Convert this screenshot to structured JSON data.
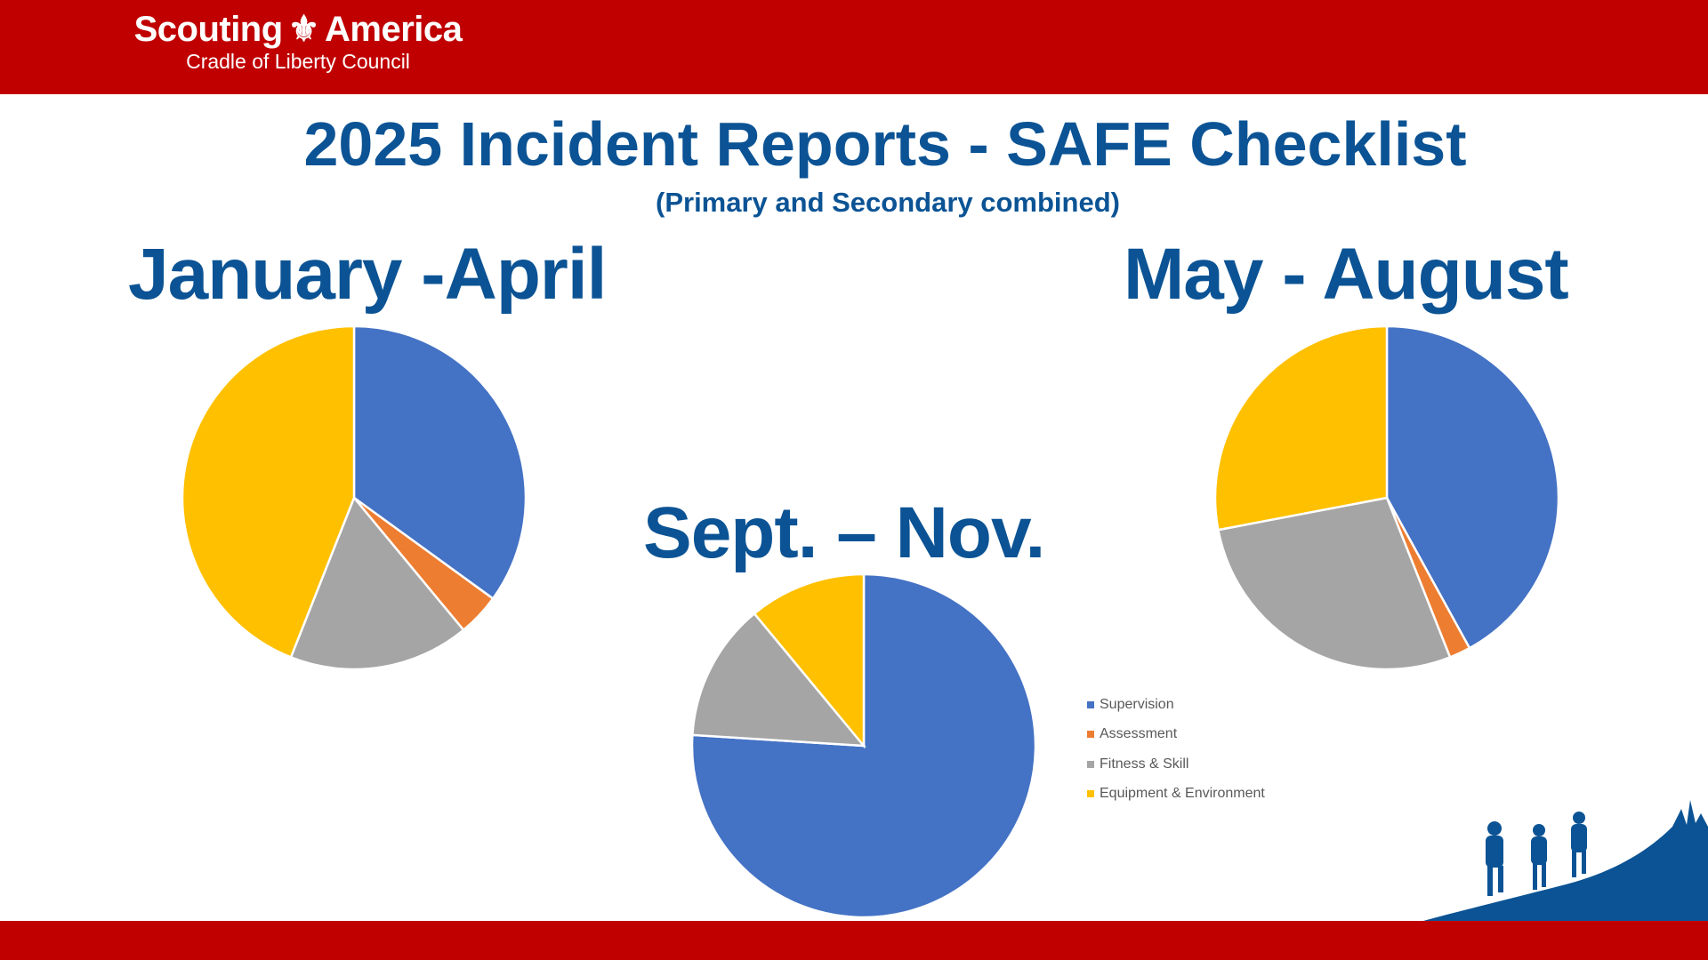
{
  "header": {
    "brand_left": "Scouting",
    "brand_right": "America",
    "council": "Cradle of Liberty Council"
  },
  "title": "2025 Incident Reports - SAFE Checklist",
  "subtitle": "(Primary and Secondary combined)",
  "chart_data": [
    {
      "type": "pie",
      "title": "January -April",
      "categories": [
        "Supervision",
        "Assessment",
        "Fitness & Skill",
        "Equipment & Environment"
      ],
      "values": [
        35,
        4,
        17,
        44
      ],
      "unit": "percent (estimated)"
    },
    {
      "type": "pie",
      "title": "May - August",
      "categories": [
        "Supervision",
        "Assessment",
        "Fitness & Skill",
        "Equipment & Environment"
      ],
      "values": [
        42,
        2,
        28,
        28
      ],
      "unit": "percent (estimated)"
    },
    {
      "type": "pie",
      "title": "Sept. – Nov.",
      "categories": [
        "Supervision",
        "Assessment",
        "Fitness & Skill",
        "Equipment & Environment"
      ],
      "values": [
        76,
        0,
        13,
        11
      ],
      "unit": "percent (estimated)"
    }
  ],
  "legend": {
    "placement": "right of center chart",
    "items": [
      {
        "label": "Supervision",
        "color": "#4472c4"
      },
      {
        "label": "Assessment",
        "color": "#ed7d31"
      },
      {
        "label": "Fitness & Skill",
        "color": "#a5a5a5"
      },
      {
        "label": "Equipment & Environment",
        "color": "#ffc000"
      }
    ]
  },
  "colors": {
    "brand_red": "#c00000",
    "title_blue": "#0b5394"
  }
}
